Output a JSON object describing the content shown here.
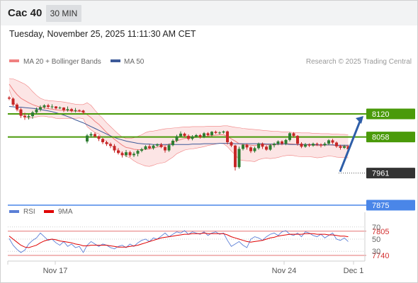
{
  "header": {
    "title": "Cac 40",
    "interval": "30 MIN"
  },
  "datetime": "Tuesday, November 25, 2025 11:11:30 AM CET",
  "legend": {
    "ma20": "MA 20 + Bollinger Bands",
    "ma50": "MA 50",
    "credit": "Research © 2025 Trading Central"
  },
  "rsi_legend": {
    "rsi": "RSI",
    "ma9": "9MA"
  },
  "colors": {
    "ma20": "#f08080",
    "bollinger_fill": "#fbdcdc",
    "ma50": "#3d5a99",
    "resistance": "#4a9a0a",
    "support": "#4a86e8",
    "weak_support": "#e57373",
    "candle_up": "#2e7d32",
    "candle_down": "#c62828",
    "current_price": "#333333",
    "rsi": "#5b7fd6",
    "rsi_ma": "#e00000",
    "arrow": "#2e5ea8"
  },
  "chart_data": [
    {
      "type": "candlestick",
      "title": "Cac 40",
      "interval": "30 MIN",
      "ylim": [
        7700,
        8240
      ],
      "x_ticks": [
        "Nov 17",
        "Nov 24",
        "Dec 1"
      ],
      "candles": [
        [
          8164,
          8161,
          8168,
          8157
        ],
        [
          8161,
          8145,
          8164,
          8141
        ],
        [
          8145,
          8132,
          8149,
          8127
        ],
        [
          8132,
          8115,
          8136,
          8109
        ],
        [
          8115,
          8111,
          8123,
          8104
        ],
        [
          8111,
          8114,
          8119,
          8105
        ],
        [
          8114,
          8124,
          8128,
          8107
        ],
        [
          8124,
          8132,
          8137,
          8120
        ],
        [
          8132,
          8138,
          8143,
          8127
        ],
        [
          8138,
          8143,
          8146,
          8134
        ],
        [
          8143,
          8139,
          8147,
          8134
        ],
        [
          8139,
          8140,
          8146,
          8134
        ],
        [
          8140,
          8135,
          8141,
          8132
        ],
        [
          8135,
          8137,
          8140,
          8133
        ],
        [
          8137,
          8130,
          8138,
          8125
        ],
        [
          8130,
          8133,
          8140,
          8126
        ],
        [
          8133,
          8128,
          8136,
          8124
        ],
        [
          8128,
          8130,
          8136,
          8124
        ],
        [
          8130,
          8129,
          8132,
          8125
        ],
        [
          8129,
          8124,
          8131,
          8119
        ],
        [
          8046,
          8062,
          8066,
          8041
        ],
        [
          8062,
          8066,
          8071,
          8056
        ],
        [
          8066,
          8060,
          8070,
          8056
        ],
        [
          8060,
          8053,
          8062,
          8047
        ],
        [
          8053,
          8044,
          8055,
          8039
        ],
        [
          8044,
          8039,
          8048,
          8034
        ],
        [
          8039,
          8034,
          8043,
          8028
        ],
        [
          8034,
          8022,
          8039,
          8016
        ],
        [
          8022,
          8015,
          8028,
          8011
        ],
        [
          8015,
          8009,
          8019,
          8003
        ],
        [
          8009,
          8017,
          8023,
          8004
        ],
        [
          8017,
          8009,
          8021,
          8004
        ],
        [
          8009,
          8013,
          8018,
          8004
        ],
        [
          8013,
          8021,
          8024,
          8006
        ],
        [
          8021,
          8025,
          8029,
          8017
        ],
        [
          8025,
          8033,
          8036,
          8023
        ],
        [
          8033,
          8028,
          8038,
          8025
        ],
        [
          8028,
          8035,
          8038,
          8024
        ],
        [
          8035,
          8038,
          8041,
          8032
        ],
        [
          8038,
          8031,
          8042,
          8028
        ],
        [
          8031,
          8022,
          8034,
          8016
        ],
        [
          8022,
          8036,
          8040,
          8018
        ],
        [
          8036,
          8048,
          8052,
          8033
        ],
        [
          8048,
          8060,
          8064,
          8044
        ],
        [
          8060,
          8067,
          8073,
          8058
        ],
        [
          8067,
          8061,
          8070,
          8057
        ],
        [
          8061,
          8053,
          8065,
          8049
        ],
        [
          8053,
          8059,
          8063,
          8049
        ],
        [
          8059,
          8063,
          8066,
          8056
        ],
        [
          8063,
          8058,
          8066,
          8054
        ],
        [
          8058,
          8068,
          8071,
          8055
        ],
        [
          8068,
          8063,
          8071,
          8059
        ],
        [
          8063,
          8072,
          8074,
          8059
        ],
        [
          8072,
          8069,
          8075,
          8066
        ],
        [
          8069,
          8070,
          8073,
          8065
        ],
        [
          8070,
          8073,
          8075,
          8067
        ],
        [
          8073,
          8044,
          8075,
          8038
        ],
        [
          8044,
          8035,
          8047,
          8031
        ],
        [
          8035,
          7977,
          8037,
          7968
        ],
        [
          7977,
          8026,
          8032,
          7973
        ],
        [
          8026,
          8037,
          8040,
          8022
        ],
        [
          8037,
          8030,
          8040,
          8024
        ],
        [
          8030,
          8020,
          8033,
          8015
        ],
        [
          8020,
          8028,
          8032,
          8016
        ],
        [
          8028,
          8040,
          8043,
          8024
        ],
        [
          8040,
          8032,
          8043,
          8026
        ],
        [
          8032,
          8024,
          8036,
          8021
        ],
        [
          8024,
          8036,
          8039,
          8021
        ],
        [
          8036,
          8040,
          8043,
          8030
        ],
        [
          8040,
          8046,
          8049,
          8036
        ],
        [
          8046,
          8040,
          8049,
          8036
        ],
        [
          8040,
          8050,
          8053,
          8036
        ],
        [
          8050,
          8068,
          8071,
          8046
        ],
        [
          8068,
          8061,
          8071,
          8056
        ],
        [
          8061,
          8040,
          8063,
          8035
        ],
        [
          8040,
          8032,
          8044,
          8028
        ],
        [
          8032,
          8038,
          8042,
          8029
        ],
        [
          8038,
          8035,
          8041,
          8031
        ],
        [
          8035,
          8040,
          8043,
          8032
        ],
        [
          8040,
          8038,
          8043,
          8034
        ],
        [
          8038,
          8036,
          8041,
          8030
        ],
        [
          8036,
          8040,
          8044,
          8033
        ],
        [
          8040,
          8049,
          8052,
          8036
        ],
        [
          8049,
          8043,
          8053,
          8039
        ],
        [
          8043,
          8033,
          8046,
          8029
        ],
        [
          8033,
          8029,
          8037,
          8024
        ],
        [
          8029,
          8033,
          8037,
          8026
        ],
        [
          8033,
          8025,
          8037,
          8021
        ]
      ],
      "candles_columns": [
        "open",
        "close",
        "high",
        "low"
      ],
      "levels": {
        "resistance": [
          8120,
          8058
        ],
        "current": 7961,
        "support": 7875,
        "weak_support": [
          7805,
          7740
        ]
      },
      "level_labels": [
        "8120",
        "8058",
        "7961",
        "7875",
        "7805",
        "7740"
      ],
      "ma20_series": [
        8200,
        8185,
        8172,
        8162,
        8156,
        8150,
        8145,
        8141,
        8138,
        8136,
        8134,
        8133,
        8131,
        8130,
        8130,
        8129,
        8128,
        8127,
        8127,
        8126,
        8118,
        8110,
        8100,
        8092,
        8081,
        8070,
        8061,
        8052,
        8044,
        8036,
        8030,
        8028,
        8025,
        8024,
        8024,
        8025,
        8026,
        8028,
        8031,
        8033,
        8035,
        8039,
        8043,
        8048,
        8051,
        8054,
        8055,
        8056,
        8057,
        8058,
        8059,
        8061,
        8062,
        8063,
        8064,
        8064,
        8060,
        8053,
        8047,
        8040,
        8038,
        8037,
        8036,
        8035,
        8037,
        8038,
        8038,
        8037,
        8037,
        8038,
        8039,
        8040,
        8040,
        8039,
        8038,
        8037,
        8037,
        8037,
        8036,
        8035,
        8035,
        8036,
        8037,
        8036,
        8035,
        8034,
        8034,
        8033
      ],
      "bollinger_upper": [
        8215,
        8214,
        8210,
        8205,
        8200,
        8192,
        8180,
        8170,
        8162,
        8158,
        8156,
        8155,
        8154,
        8153,
        8152,
        8150,
        8148,
        8146,
        8145,
        8145,
        8150,
        8143,
        8130,
        8118,
        8108,
        8096,
        8086,
        8076,
        8066,
        8058,
        8054,
        8054,
        8056,
        8060,
        8064,
        8070,
        8073,
        8074,
        8076,
        8078,
        8080,
        8081,
        8082,
        8083,
        8084,
        8085,
        8085,
        8086,
        8086,
        8086,
        8086,
        8087,
        8087,
        8087,
        8087,
        8088,
        8088,
        8086,
        8084,
        8083,
        8081,
        8080,
        8079,
        8078,
        8077,
        8076,
        8075,
        8074,
        8073,
        8073,
        8072,
        8072,
        8071,
        8070,
        8070,
        8069,
        8069,
        8069,
        8068,
        8068,
        8067,
        8067,
        8067,
        8066,
        8066,
        8065,
        8065,
        8064
      ],
      "bollinger_lower": [
        8185,
        8156,
        8134,
        8119,
        8112,
        8108,
        8110,
        8112,
        8114,
        8114,
        8112,
        8111,
        8108,
        8107,
        8108,
        8108,
        8108,
        8108,
        8109,
        8107,
        8086,
        8077,
        8070,
        8066,
        8054,
        8044,
        8036,
        8028,
        8022,
        8014,
        8006,
        8002,
        7994,
        7988,
        7984,
        7980,
        7979,
        7982,
        7986,
        7988,
        7990,
        7997,
        8004,
        8013,
        8018,
        8023,
        8025,
        8026,
        8028,
        8030,
        8032,
        8035,
        8037,
        8039,
        8041,
        8040,
        8032,
        8020,
        8010,
        7997,
        7995,
        7994,
        7993,
        7992,
        7997,
        8000,
        8001,
        8000,
        8001,
        8003,
        8006,
        8008,
        8009,
        8008,
        8006,
        8005,
        8005,
        8005,
        8004,
        8002,
        8003,
        8005,
        8007,
        8006,
        8004,
        8003,
        8003,
        8002
      ],
      "ma50_series": [
        8140,
        8139,
        8138,
        8138,
        8137,
        8136,
        8135,
        8134,
        8132,
        8130,
        8128,
        8126,
        8123,
        8120,
        8117,
        8113,
        8109,
        8104,
        8100,
        8096,
        8091,
        8086,
        8081,
        8076,
        8071,
        8066,
        8061,
        8057,
        8053,
        8050,
        8047,
        8045,
        8043,
        8041,
        8040,
        8039,
        8039,
        8038,
        8038,
        8038,
        8038,
        8038,
        8038,
        8038,
        8038,
        8038,
        8038,
        8039,
        8039,
        8039,
        8040,
        8040,
        8040,
        8040,
        8041,
        8041,
        8041,
        8041,
        8040,
        8040,
        8040,
        8040,
        8040,
        8040,
        8040,
        8040,
        8039,
        8039,
        8039,
        8039,
        8039,
        8039,
        8038,
        8038,
        8038,
        8038,
        8038,
        8038,
        8038,
        8037,
        8037,
        8037,
        8037,
        8037,
        8036,
        8036,
        8036,
        8036
      ],
      "forecast_arrow": {
        "from": 7961,
        "to": 8120
      }
    },
    {
      "type": "line",
      "title": "RSI",
      "ylim": [
        0,
        100
      ],
      "y_ticks": [
        70,
        50,
        30
      ],
      "series": [
        {
          "name": "RSI",
          "values": [
            51,
            40,
            33,
            28,
            32,
            42,
            48,
            52,
            60,
            54,
            48,
            50,
            44,
            40,
            46,
            38,
            42,
            36,
            38,
            28,
            40,
            46,
            42,
            38,
            42,
            40,
            36,
            34,
            38,
            40,
            36,
            42,
            38,
            44,
            48,
            50,
            46,
            52,
            50,
            55,
            60,
            54,
            58,
            62,
            60,
            64,
            58,
            62,
            60,
            58,
            62,
            56,
            60,
            62,
            58,
            60,
            48,
            38,
            42,
            46,
            40,
            36,
            50,
            54,
            52,
            48,
            54,
            58,
            60,
            56,
            62,
            64,
            58,
            56,
            60,
            54,
            62,
            60,
            56,
            54,
            58,
            52,
            56,
            60,
            50,
            48,
            52,
            46
          ]
        },
        {
          "name": "9MA",
          "values": [
            55,
            50,
            45,
            40,
            37,
            36,
            38,
            40,
            44,
            47,
            49,
            50,
            49,
            47,
            46,
            45,
            44,
            42,
            41,
            39,
            39,
            40,
            40,
            40,
            40,
            40,
            39,
            38,
            37,
            37,
            37,
            38,
            39,
            40,
            42,
            44,
            46,
            48,
            50,
            52,
            53,
            54,
            55,
            56,
            57,
            58,
            58,
            59,
            59,
            59,
            60,
            59,
            59,
            59,
            59,
            59,
            57,
            54,
            52,
            50,
            48,
            46,
            45,
            46,
            47,
            48,
            50,
            52,
            53,
            55,
            56,
            57,
            58,
            58,
            58,
            58,
            59,
            59,
            59,
            58,
            58,
            58,
            57,
            57,
            56,
            55,
            55,
            54
          ]
        }
      ]
    }
  ]
}
